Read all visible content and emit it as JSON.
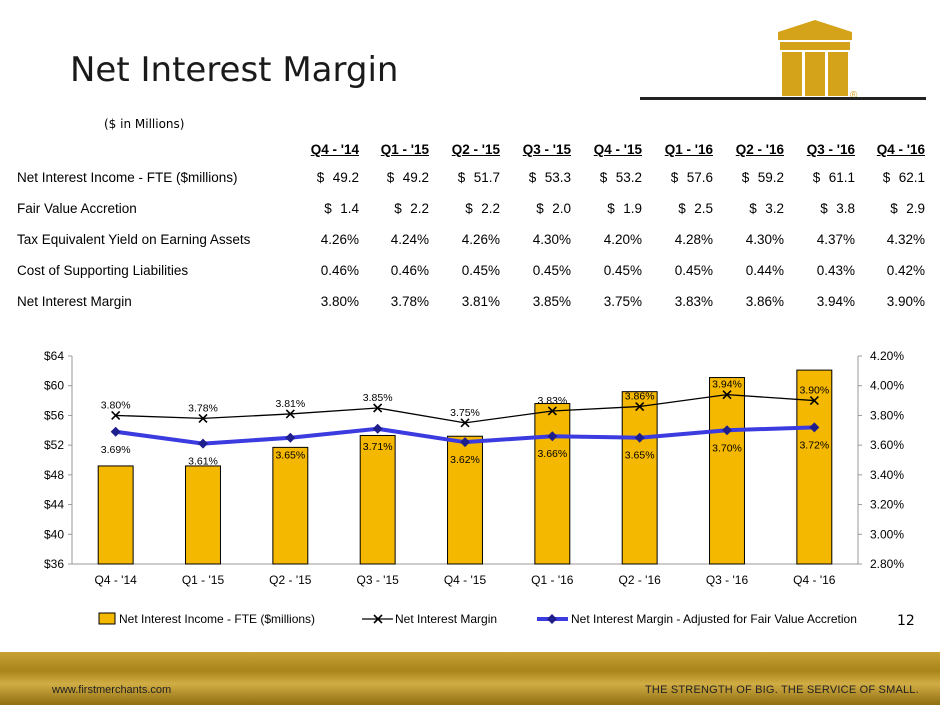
{
  "slide": {
    "title": "Net Interest Margin",
    "subtitle": "($ in Millions)",
    "page_number": "12",
    "footer_url": "www.firstmerchants.com",
    "footer_tagline": "THE STRENGTH OF BIG. THE SERVICE OF SMALL.",
    "logo_mark": "®"
  },
  "colors": {
    "gold": "#f5b800",
    "bar_border": "#000000",
    "nim_line": "#000000",
    "adjusted_line": "#3b3be0",
    "adjusted_marker": "#1e1e8c"
  },
  "table": {
    "headers": [
      "Q4 - '14",
      "Q1 - '15",
      "Q2 - '15",
      "Q3 - '15",
      "Q4 - '15",
      "Q1 - '16",
      "Q2 - '16",
      "Q3 - '16",
      "Q4 - '16"
    ],
    "rows": [
      {
        "label": "Net Interest Income - FTE ($millions)",
        "currency": "$",
        "values": [
          "49.2",
          "49.2",
          "51.7",
          "53.3",
          "53.2",
          "57.6",
          "59.2",
          "61.1",
          "62.1"
        ]
      },
      {
        "label": "Fair Value Accretion",
        "currency": "$",
        "values": [
          "1.4",
          "2.2",
          "2.2",
          "2.0",
          "1.9",
          "2.5",
          "3.2",
          "3.8",
          "2.9"
        ]
      },
      {
        "label": "Tax Equivalent Yield on Earning Assets",
        "currency": "",
        "values": [
          "4.26%",
          "4.24%",
          "4.26%",
          "4.30%",
          "4.20%",
          "4.28%",
          "4.30%",
          "4.37%",
          "4.32%"
        ]
      },
      {
        "label": "Cost of Supporting Liabilities",
        "currency": "",
        "values": [
          "0.46%",
          "0.46%",
          "0.45%",
          "0.45%",
          "0.45%",
          "0.45%",
          "0.44%",
          "0.43%",
          "0.42%"
        ]
      },
      {
        "label": "Net Interest Margin",
        "currency": "",
        "values": [
          "3.80%",
          "3.78%",
          "3.81%",
          "3.85%",
          "3.75%",
          "3.83%",
          "3.86%",
          "3.94%",
          "3.90%"
        ]
      }
    ]
  },
  "chart_data": {
    "type": "bar+line",
    "categories": [
      "Q4 - '14",
      "Q1 - '15",
      "Q2 - '15",
      "Q3 - '15",
      "Q4 - '15",
      "Q1 - '16",
      "Q2 - '16",
      "Q3 - '16",
      "Q4 - '16"
    ],
    "bars": {
      "name": "Net Interest Income - FTE ($millions)",
      "axis": "left",
      "values": [
        49.2,
        49.2,
        51.7,
        53.3,
        53.2,
        57.6,
        59.2,
        61.1,
        62.1
      ]
    },
    "lines": [
      {
        "name": "Net Interest Margin",
        "axis": "right",
        "marker": "x",
        "values": [
          3.8,
          3.78,
          3.81,
          3.85,
          3.75,
          3.83,
          3.86,
          3.94,
          3.9
        ],
        "labels": [
          "3.80%",
          "3.78%",
          "3.81%",
          "3.85%",
          "3.75%",
          "3.83%",
          "3.86%",
          "3.94%",
          "3.90%"
        ]
      },
      {
        "name": "Net Interest Margin - Adjusted for Fair Value Accretion",
        "axis": "right",
        "marker": "diamond",
        "values": [
          3.69,
          3.61,
          3.65,
          3.71,
          3.62,
          3.66,
          3.65,
          3.7,
          3.72
        ],
        "labels": [
          "3.69%",
          "3.61%",
          "3.65%",
          "3.71%",
          "3.62%",
          "3.66%",
          "3.65%",
          "3.70%",
          "3.72%"
        ]
      }
    ],
    "left_axis": {
      "min": 36,
      "max": 64,
      "step": 4,
      "ticks": [
        "$36",
        "$40",
        "$44",
        "$48",
        "$52",
        "$56",
        "$60",
        "$64"
      ]
    },
    "right_axis": {
      "min": 2.8,
      "max": 4.2,
      "step": 0.2,
      "ticks": [
        "2.80%",
        "3.00%",
        "3.20%",
        "3.40%",
        "3.60%",
        "3.80%",
        "4.00%",
        "4.20%"
      ]
    },
    "legend_position": "bottom"
  }
}
